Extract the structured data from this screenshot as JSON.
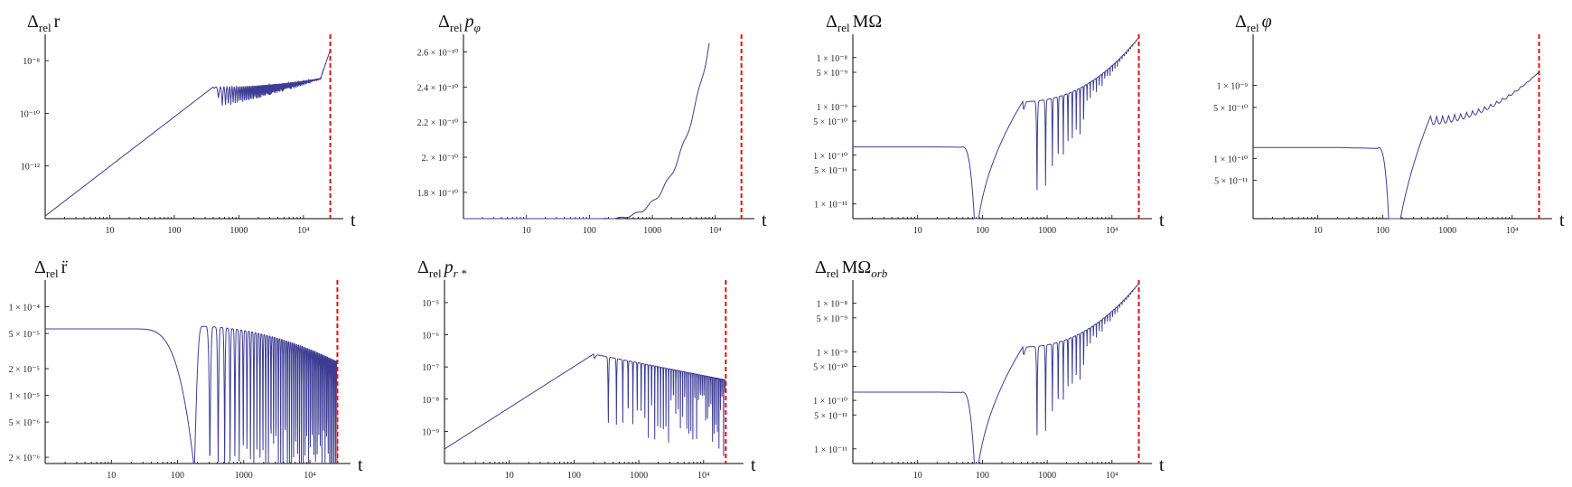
{
  "figure_title": "",
  "chart_data": [
    {
      "type": "line",
      "title": "Δ_rel r",
      "title_main": "Δ",
      "title_sub": "rel",
      "title_tail": "r",
      "xlabel": "t",
      "x_scale": "log",
      "y_scale": "log",
      "xlim": [
        1,
        30000
      ],
      "ylim": [
        1e-14,
        1e-07
      ],
      "x_ticks": [
        "10",
        "100",
        "1000",
        "10⁴"
      ],
      "y_ticks": [
        "10⁻⁸",
        "10⁻¹⁰",
        "10⁻¹²"
      ],
      "y_tick_values": [
        1e-08,
        1e-10,
        1e-12
      ],
      "marker_t": 26000,
      "series": [
        {
          "name": "Δ_rel r",
          "color": "#3d3d94",
          "model": {
            "kind": "rise_osc",
            "base_log": -13.9,
            "slope": 2.05,
            "peak_t": 400,
            "peak_log": -9.0,
            "osc_amp": 0.9,
            "tail_log": -8.6
          }
        }
      ]
    },
    {
      "type": "line",
      "title": "Δ_rel p_φ",
      "title_main": "Δ",
      "title_sub": "rel",
      "title_tail": "p",
      "title_tail_sub": "φ",
      "xlabel": "t",
      "x_scale": "log",
      "y_scale": "linear",
      "xlim": [
        1,
        30000
      ],
      "ylim": [
        1.65e-10,
        2.7e-10
      ],
      "x_ticks": [
        "10",
        "100",
        "1000",
        "10⁴"
      ],
      "y_ticks": [
        "2.6 × 10⁻¹⁰",
        "2.4 × 10⁻¹⁰",
        "2.2 × 10⁻¹⁰",
        "2. × 10⁻¹⁰",
        "1.8 × 10⁻¹⁰"
      ],
      "y_tick_values": [
        2.6e-10,
        2.4e-10,
        2.2e-10,
        2e-10,
        1.8e-10
      ],
      "marker_t": 26000,
      "series": [
        {
          "name": "Δ_rel p_φ",
          "color": "#3d3d94",
          "model": {
            "kind": "pphi",
            "base": 1.65e-10,
            "start_t": 150,
            "end_t": 8000,
            "end_val": 2.65e-10
          }
        }
      ]
    },
    {
      "type": "line",
      "title": "Δ_rel MΩ",
      "title_main": "Δ",
      "title_sub": "rel",
      "title_tail": "MΩ",
      "xlabel": "t",
      "x_scale": "log",
      "y_scale": "log",
      "xlim": [
        1,
        30000
      ],
      "ylim": [
        5e-12,
        3e-08
      ],
      "x_ticks": [
        "10",
        "100",
        "1000",
        "10⁴"
      ],
      "y_ticks": [
        "1 × 10⁻⁸",
        "5 × 10⁻⁹",
        "1 × 10⁻⁹",
        "5 × 10⁻¹⁰",
        "1 × 10⁻¹⁰",
        "5 × 10⁻¹¹",
        "1 × 10⁻¹¹"
      ],
      "y_tick_values": [
        1e-08,
        5e-09,
        1e-09,
        5e-10,
        1e-10,
        5e-11,
        1e-11
      ],
      "marker_t": 26000,
      "series": [
        {
          "name": "Δ_rel MΩ",
          "color": "#3d3d94",
          "model": {
            "kind": "flat_dip_osc",
            "flat_log": -9.83,
            "dip_t": 80,
            "peak_t": 420,
            "peak_log": -8.9,
            "tail_log": -7.6
          }
        }
      ]
    },
    {
      "type": "line",
      "title": "Δ_rel φ",
      "title_main": "Δ",
      "title_sub": "rel",
      "title_tail": "φ",
      "xlabel": "t",
      "x_scale": "log",
      "y_scale": "log",
      "xlim": [
        1,
        30000
      ],
      "ylim": [
        1.5e-11,
        5e-09
      ],
      "x_ticks": [
        "10",
        "100",
        "1000",
        "10⁴"
      ],
      "y_ticks": [
        "1 × 10⁻⁹",
        "5 × 10⁻¹⁰",
        "1 × 10⁻¹⁰",
        "5 × 10⁻¹¹"
      ],
      "y_tick_values": [
        1e-09,
        5e-10,
        1e-10,
        5e-11
      ],
      "marker_t": 26000,
      "series": [
        {
          "name": "Δ_rel φ",
          "color": "#3d3d94",
          "model": {
            "kind": "phi",
            "flat_log": -9.85,
            "dip_t": 140,
            "peak_t": 550,
            "peak_log": -9.42,
            "tail_log": -8.82
          }
        }
      ]
    },
    {
      "type": "line",
      "title": "Δ_rel r̈",
      "title_main": "Δ",
      "title_sub": "rel",
      "title_tail": "r̈",
      "xlabel": "t",
      "x_scale": "log",
      "y_scale": "log",
      "xlim": [
        1,
        30000
      ],
      "ylim": [
        1.7e-06,
        0.0002
      ],
      "x_ticks": [
        "10",
        "100",
        "1000",
        "10⁴"
      ],
      "y_ticks": [
        "1 × 10⁻⁴",
        "5 × 10⁻⁵",
        "2 × 10⁻⁵",
        "1 × 10⁻⁵",
        "5 × 10⁻⁶",
        "2 × 10⁻⁶"
      ],
      "y_tick_values": [
        0.0001,
        5e-05,
        2e-05,
        1e-05,
        5e-06,
        2e-06
      ],
      "marker_t": 26000,
      "series": [
        {
          "name": "Δ_rel r̈",
          "color": "#3d3d94",
          "model": {
            "kind": "rddot",
            "flat_log": -4.25,
            "dip_t": 180,
            "tail_lo": -5.75
          }
        }
      ]
    },
    {
      "type": "line",
      "title": "Δ_rel p_r*",
      "title_main": "Δ",
      "title_sub": "rel",
      "title_tail": "p",
      "title_tail_sub": "r *",
      "xlabel": "t",
      "x_scale": "log",
      "y_scale": "log",
      "xlim": [
        1,
        30000
      ],
      "ylim": [
        1e-10,
        5e-05
      ],
      "x_ticks": [
        "10",
        "100",
        "1000",
        "10⁴"
      ],
      "y_ticks": [
        "10⁻⁵",
        "10⁻⁶",
        "10⁻⁷",
        "10⁻⁸",
        "10⁻⁹"
      ],
      "y_tick_values": [
        1e-05,
        1e-06,
        1e-07,
        1e-08,
        1e-09
      ],
      "marker_t": 22000,
      "series": [
        {
          "name": "Δ_rel p_r*",
          "color": "#3d3d94",
          "model": {
            "kind": "rise_osc2",
            "base_log": -9.55,
            "slope": 0.98,
            "peak_t": 200,
            "peak_log": -6.6,
            "tail_log": -7.4
          }
        }
      ]
    },
    {
      "type": "line",
      "title": "Δ_rel MΩ_orb",
      "title_main": "Δ",
      "title_sub": "rel",
      "title_tail": "MΩ",
      "title_tail_sub": "orb",
      "xlabel": "t",
      "x_scale": "log",
      "y_scale": "log",
      "xlim": [
        1,
        30000
      ],
      "ylim": [
        5e-12,
        3e-08
      ],
      "x_ticks": [
        "10",
        "100",
        "1000",
        "10⁴"
      ],
      "y_ticks": [
        "1 × 10⁻⁸",
        "5 × 10⁻⁹",
        "1 × 10⁻⁹",
        "5 × 10⁻¹⁰",
        "1 × 10⁻¹⁰",
        "5 × 10⁻¹¹",
        "1 × 10⁻¹¹"
      ],
      "y_tick_values": [
        1e-08,
        5e-09,
        1e-09,
        5e-10,
        1e-10,
        5e-11,
        1e-11
      ],
      "marker_t": 26000,
      "series": [
        {
          "name": "Δ_rel MΩ_orb",
          "color": "#3d3d94",
          "model": {
            "kind": "flat_dip_osc",
            "flat_log": -9.83,
            "dip_t": 80,
            "peak_t": 420,
            "peak_log": -8.9,
            "tail_log": -7.6
          }
        }
      ]
    }
  ]
}
